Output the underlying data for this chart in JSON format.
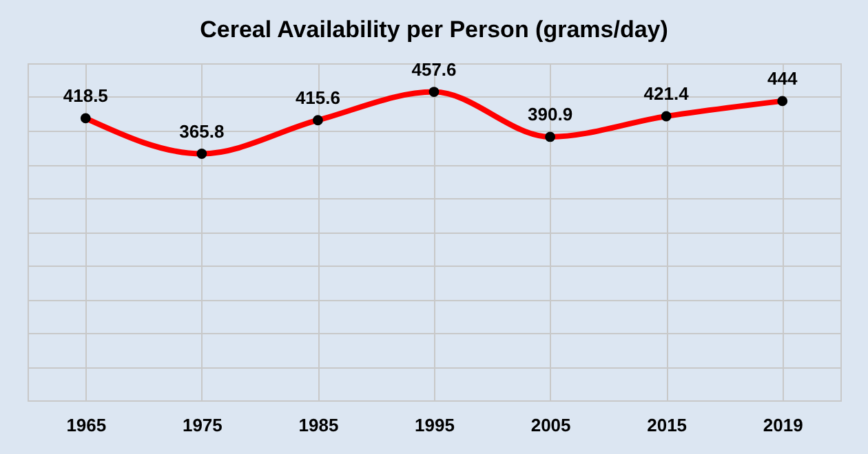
{
  "chart_data": {
    "type": "line",
    "title": "Cereal Availability per Person (grams/day)",
    "categories": [
      "1965",
      "1975",
      "1985",
      "1995",
      "2005",
      "2015",
      "2019"
    ],
    "series": [
      {
        "color": "#ff0000",
        "values": [
          418.5,
          365.8,
          415.6,
          457.6,
          390.9,
          421.4,
          444
        ]
      }
    ],
    "ylim": [
      0,
      500
    ],
    "tick_labels": "x",
    "grid": true,
    "data_labels": true,
    "marker": "circle",
    "line_style": "solid"
  }
}
